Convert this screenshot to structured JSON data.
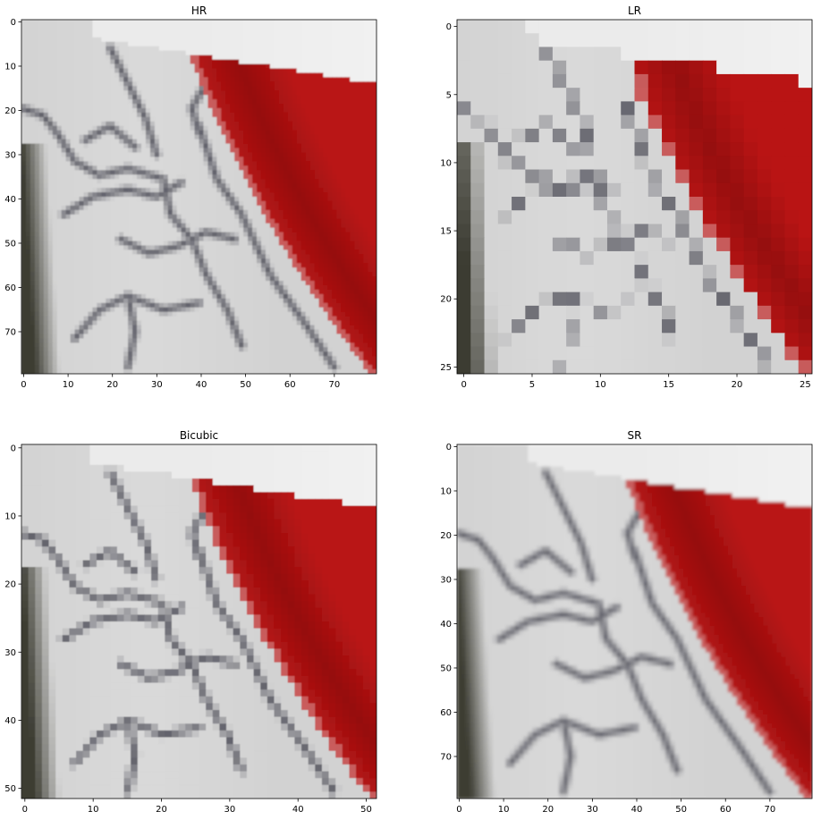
{
  "chart_data": [
    {
      "type": "image",
      "title": "HR",
      "xticks": [
        0,
        10,
        20,
        30,
        40,
        50,
        60,
        70
      ],
      "yticks": [
        0,
        10,
        20,
        30,
        40,
        50,
        60,
        70
      ],
      "xlim": [
        -0.5,
        79.5
      ],
      "ylim": [
        79.5,
        -0.5
      ],
      "image_size": [
        80,
        80
      ],
      "blur": 0.9
    },
    {
      "type": "image",
      "title": "LR",
      "xticks": [
        0,
        5,
        10,
        15,
        20,
        25
      ],
      "yticks": [
        0,
        5,
        10,
        15,
        20,
        25
      ],
      "xlim": [
        -0.5,
        25.5
      ],
      "ylim": [
        25.5,
        -0.5
      ],
      "image_size": [
        26,
        26
      ],
      "blur": 0
    },
    {
      "type": "image",
      "title": "Bicubic",
      "xticks": [
        0,
        10,
        20,
        30,
        40,
        50
      ],
      "yticks": [
        0,
        10,
        20,
        30,
        40,
        50
      ],
      "xlim": [
        -0.5,
        51.5
      ],
      "ylim": [
        51.5,
        -0.5
      ],
      "image_size": [
        52,
        52
      ],
      "blur": 0.4
    },
    {
      "type": "image",
      "title": "SR",
      "xticks": [
        0,
        10,
        20,
        30,
        40,
        50,
        60,
        70
      ],
      "yticks": [
        0,
        10,
        20,
        30,
        40,
        50,
        60,
        70
      ],
      "xlim": [
        -0.5,
        79.5
      ],
      "ylim": [
        79.5,
        -0.5
      ],
      "image_size": [
        80,
        80
      ],
      "blur": 1.6
    }
  ],
  "colors": {
    "background": "#ffffff",
    "sky": "#ebebeb",
    "surface": "#d2d2d2",
    "crack": "#50505a",
    "red": "#b91414",
    "dark_red": "#780a0a",
    "shadow": "#3c3c32"
  }
}
